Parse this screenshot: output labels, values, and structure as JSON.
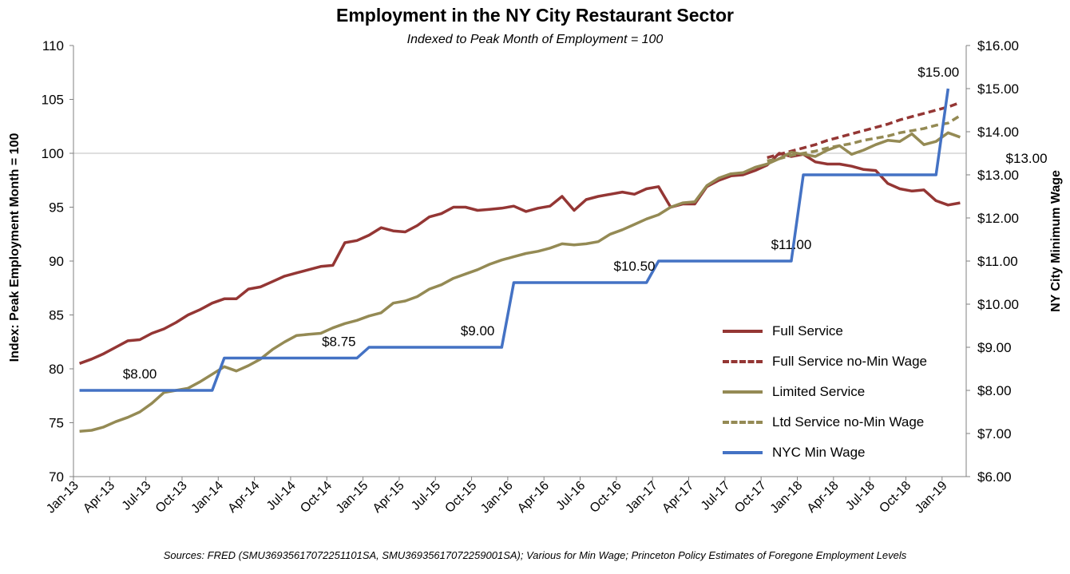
{
  "chart_data": {
    "type": "line",
    "title": "Employment in the NY City Restaurant Sector",
    "subtitle": "Indexed to Peak Month of Employment = 100",
    "ylabel_left": "Index: Peak Employment Month = 100",
    "ylabel_right": "NY City Minimum Wage",
    "source": "Sources: FRED (SMU36935617072251101SA, SMU36935617072259001SA); Various for Min Wage; Princeton Policy Estimates of Foregone Employment Levels",
    "ylim_left": [
      70,
      110
    ],
    "yticks_left": [
      70,
      75,
      80,
      85,
      90,
      95,
      100,
      105,
      110
    ],
    "ylim_right": [
      6,
      16
    ],
    "yticks_right": [
      "$6.00",
      "$7.00",
      "$8.00",
      "$9.00",
      "$10.00",
      "$11.00",
      "$12.00",
      "$13.00",
      "$14.00",
      "$15.00",
      "$16.00"
    ],
    "xtick_labels": [
      "Jan-13",
      "Apr-13",
      "Jul-13",
      "Oct-13",
      "Jan-14",
      "Apr-14",
      "Jul-14",
      "Oct-14",
      "Jan-15",
      "Apr-15",
      "Jul-15",
      "Oct-15",
      "Jan-16",
      "Apr-16",
      "Jul-16",
      "Oct-16",
      "Jan-17",
      "Apr-17",
      "Jul-17",
      "Oct-17",
      "Jan-18",
      "Apr-18",
      "Jul-18",
      "Oct-18",
      "Jan-19"
    ],
    "x_start": "Jan-13",
    "gridline_y": 100,
    "legend_position": "right",
    "series": [
      {
        "name": "Full Service",
        "axis": "left",
        "color": "#943634",
        "dash": false,
        "values": [
          80.5,
          80.9,
          81.4,
          82.0,
          82.6,
          82.7,
          83.3,
          83.7,
          84.3,
          85.0,
          85.5,
          86.1,
          86.5,
          86.5,
          87.4,
          87.6,
          88.1,
          88.6,
          88.9,
          89.2,
          89.5,
          89.6,
          91.7,
          91.9,
          92.4,
          93.1,
          92.8,
          92.7,
          93.3,
          94.1,
          94.4,
          95.0,
          95.0,
          94.7,
          94.8,
          94.9,
          95.1,
          94.6,
          94.9,
          95.1,
          96.0,
          94.7,
          95.7,
          96.0,
          96.2,
          96.4,
          96.2,
          96.7,
          96.9,
          95.0,
          95.3,
          95.3,
          96.9,
          97.5,
          97.9,
          98.0,
          98.4,
          98.9,
          100.0,
          99.7,
          99.9,
          99.2,
          99.0,
          99.0,
          98.8,
          98.5,
          98.4,
          97.2,
          96.7,
          96.5,
          96.6,
          95.6,
          95.2,
          95.4
        ]
      },
      {
        "name": "Full Service no-Min Wage",
        "axis": "left",
        "color": "#943634",
        "dash": true,
        "x_index_start": 57,
        "values": [
          99.6,
          99.9,
          100.2,
          100.5,
          100.8,
          101.2,
          101.5,
          101.8,
          102.1,
          102.4,
          102.7,
          103.1,
          103.4,
          103.7,
          104.0,
          104.3,
          104.7
        ]
      },
      {
        "name": "Limited Service",
        "axis": "left",
        "color": "#948A54",
        "dash": false,
        "values": [
          74.2,
          74.3,
          74.6,
          75.1,
          75.5,
          76.0,
          76.8,
          77.8,
          78.0,
          78.2,
          78.8,
          79.5,
          80.2,
          79.8,
          80.3,
          80.9,
          81.8,
          82.5,
          83.1,
          83.2,
          83.3,
          83.8,
          84.2,
          84.5,
          84.9,
          85.2,
          86.1,
          86.3,
          86.7,
          87.4,
          87.8,
          88.4,
          88.8,
          89.2,
          89.7,
          90.1,
          90.4,
          90.7,
          90.9,
          91.2,
          91.6,
          91.5,
          91.6,
          91.8,
          92.5,
          92.9,
          93.4,
          93.9,
          94.3,
          95.0,
          95.4,
          95.5,
          97.0,
          97.7,
          98.1,
          98.2,
          98.7,
          99.0,
          99.5,
          100.1,
          99.9,
          99.7,
          100.3,
          100.7,
          99.9,
          100.3,
          100.8,
          101.2,
          101.1,
          101.8,
          100.8,
          101.1,
          101.9,
          101.5
        ]
      },
      {
        "name": "Ltd Service no-Min Wage",
        "axis": "left",
        "color": "#948A54",
        "dash": true,
        "x_index_start": 57,
        "values": [
          99.3,
          99.5,
          99.8,
          100.0,
          100.2,
          100.5,
          100.7,
          100.9,
          101.2,
          101.4,
          101.6,
          101.9,
          102.1,
          102.3,
          102.6,
          102.8,
          103.5
        ]
      },
      {
        "name": "NYC Min Wage",
        "axis": "right",
        "color": "#4472C4",
        "dash": false,
        "steps": [
          {
            "from": 0,
            "to": 12,
            "wage": 8.0
          },
          {
            "from": 12,
            "to": 24,
            "wage": 8.75
          },
          {
            "from": 24,
            "to": 36,
            "wage": 9.0
          },
          {
            "from": 36,
            "to": 48,
            "wage": 10.5
          },
          {
            "from": 48,
            "to": 60,
            "wage": 11.0
          },
          {
            "from": 60,
            "to": 72,
            "wage": 13.0
          },
          {
            "from": 72,
            "to": 73,
            "wage": 15.0
          }
        ]
      }
    ],
    "annotations": [
      {
        "text": "$8.00",
        "x_index": 5,
        "wage": 8.0
      },
      {
        "text": "$8.75",
        "x_index": 21.5,
        "wage": 8.75
      },
      {
        "text": "$9.00",
        "x_index": 33,
        "wage": 9.0
      },
      {
        "text": "$10.50",
        "x_index": 46,
        "wage": 10.5
      },
      {
        "text": "$11.00",
        "x_index": 59,
        "wage": 11.0
      },
      {
        "text": "$13.00",
        "x_index": 78.5,
        "wage": 13.0
      },
      {
        "text": "$15.00",
        "x_index": 71.2,
        "wage": 15.0
      }
    ]
  }
}
